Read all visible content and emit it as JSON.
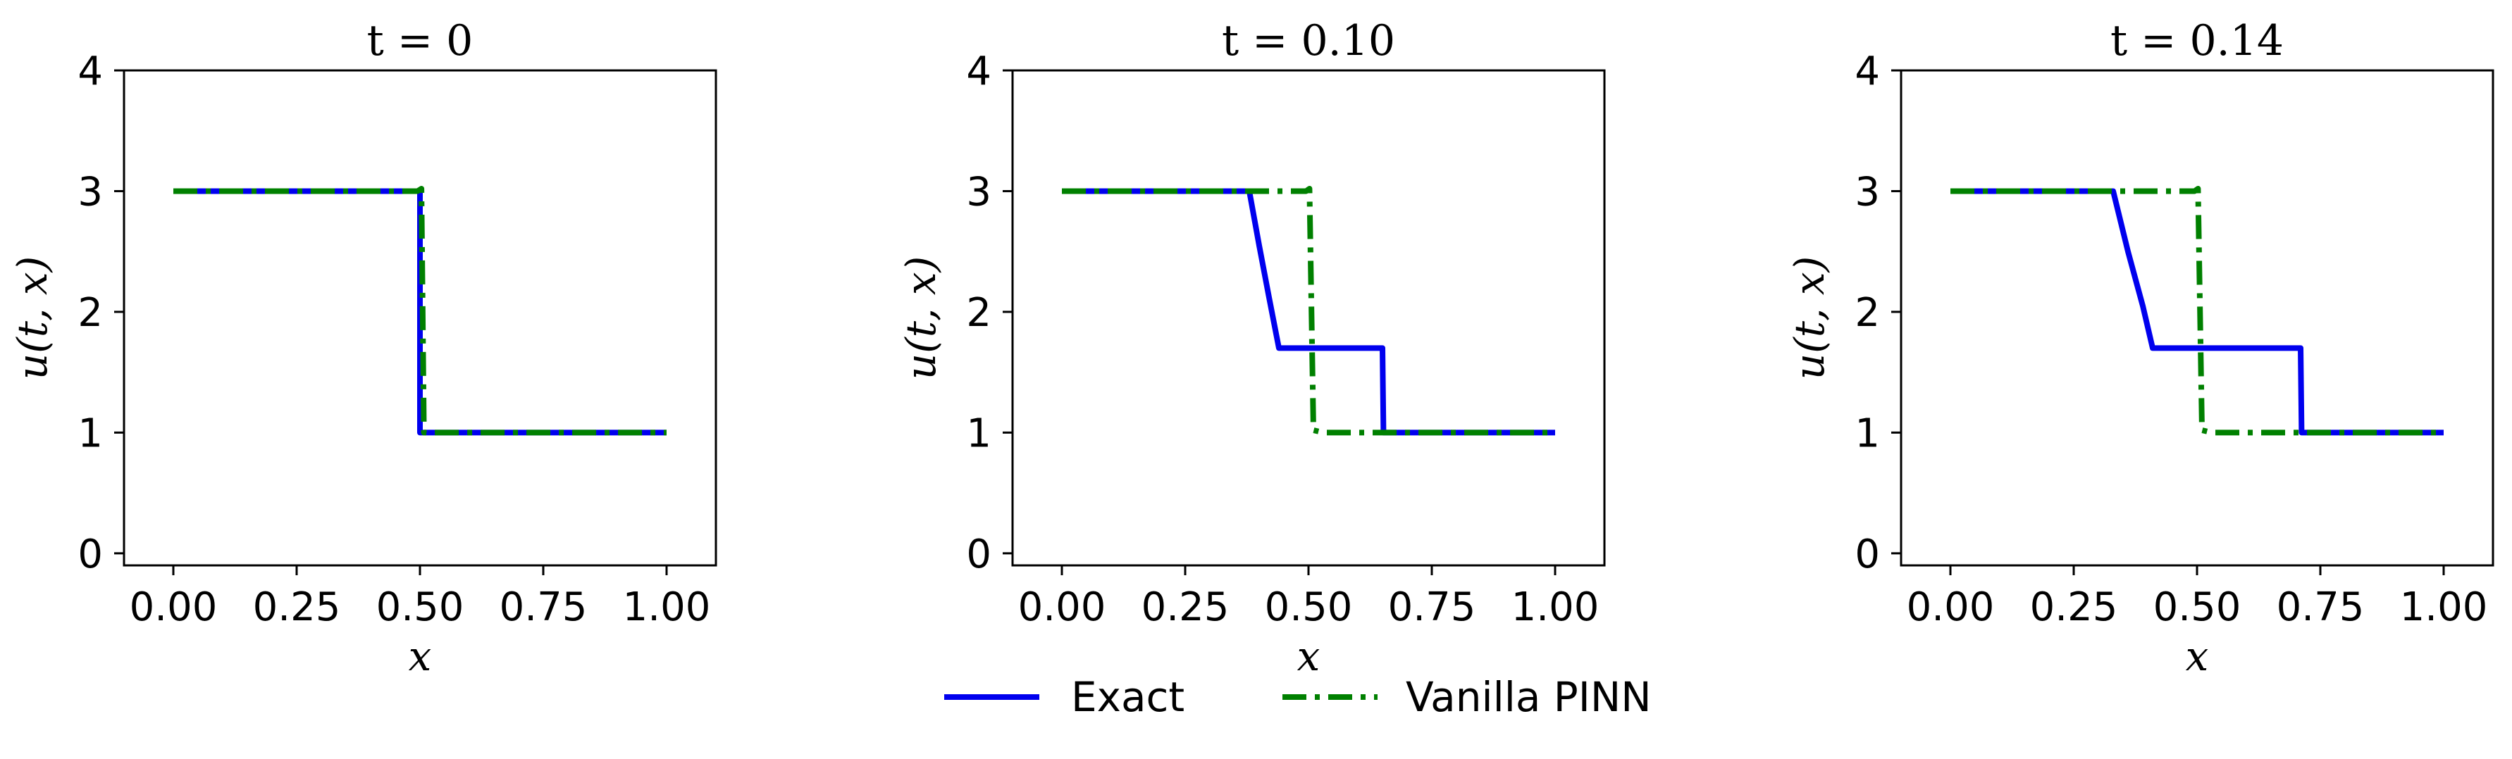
{
  "chart_data": [
    {
      "type": "line",
      "title": "t = 0",
      "xlabel": "x",
      "ylabel": "u(t, x)",
      "xlim": [
        -0.1,
        1.1
      ],
      "ylim": [
        -0.1,
        4.0
      ],
      "xticks": [
        "0.00",
        "0.25",
        "0.50",
        "0.75",
        "1.00"
      ],
      "yticks": [
        "0",
        "1",
        "2",
        "3",
        "4"
      ],
      "grid": false,
      "series": [
        {
          "name": "Exact",
          "color": "#0000ee",
          "style": "solid",
          "x": [
            0.0,
            0.5,
            0.5,
            1.0
          ],
          "y": [
            3,
            3,
            1,
            1
          ]
        },
        {
          "name": "Vanilla PINN",
          "color": "#008000",
          "style": "dashdot",
          "x": [
            0.0,
            0.495,
            0.503,
            0.508,
            1.0
          ],
          "y": [
            3,
            3,
            3.02,
            1,
            1
          ]
        }
      ]
    },
    {
      "type": "line",
      "title": "t = 0.10",
      "xlabel": "x",
      "ylabel": "u(t, x)",
      "xlim": [
        -0.1,
        1.1
      ],
      "ylim": [
        -0.1,
        4.0
      ],
      "xticks": [
        "0.00",
        "0.25",
        "0.50",
        "0.75",
        "1.00"
      ],
      "yticks": [
        "0",
        "1",
        "2",
        "3",
        "4"
      ],
      "grid": false,
      "series": [
        {
          "name": "Exact",
          "color": "#0000ee",
          "style": "solid",
          "x": [
            0.0,
            0.38,
            0.4,
            0.42,
            0.44,
            0.65,
            0.652,
            1.0
          ],
          "y": [
            3,
            3,
            2.55,
            2.12,
            1.7,
            1.7,
            1,
            1
          ]
        },
        {
          "name": "Vanilla PINN",
          "color": "#008000",
          "style": "dashdot",
          "x": [
            0.0,
            0.495,
            0.502,
            0.51,
            0.53,
            1.0
          ],
          "y": [
            3,
            3,
            3.02,
            1.02,
            1,
            1
          ]
        }
      ]
    },
    {
      "type": "line",
      "title": "t = 0.14",
      "xlabel": "x",
      "ylabel": "u(t, x)",
      "xlim": [
        -0.1,
        1.1
      ],
      "ylim": [
        -0.1,
        4.0
      ],
      "xticks": [
        "0.00",
        "0.25",
        "0.50",
        "0.75",
        "1.00"
      ],
      "yticks": [
        "0",
        "1",
        "2",
        "3",
        "4"
      ],
      "grid": false,
      "series": [
        {
          "name": "Exact",
          "color": "#0000ee",
          "style": "solid",
          "x": [
            0.0,
            0.33,
            0.36,
            0.39,
            0.41,
            0.71,
            0.712,
            1.0
          ],
          "y": [
            3,
            3,
            2.5,
            2.05,
            1.7,
            1.7,
            1,
            1
          ]
        },
        {
          "name": "Vanilla PINN",
          "color": "#008000",
          "style": "dashdot",
          "x": [
            0.0,
            0.495,
            0.502,
            0.51,
            0.53,
            1.0
          ],
          "y": [
            3,
            3,
            3.02,
            1.02,
            1,
            1
          ]
        }
      ]
    }
  ],
  "legend": {
    "placement": "bottom-center",
    "items": [
      {
        "label": "Exact",
        "color": "#0000ee",
        "style": "solid"
      },
      {
        "label": "Vanilla PINN",
        "color": "#008000",
        "style": "dashdot"
      }
    ]
  }
}
